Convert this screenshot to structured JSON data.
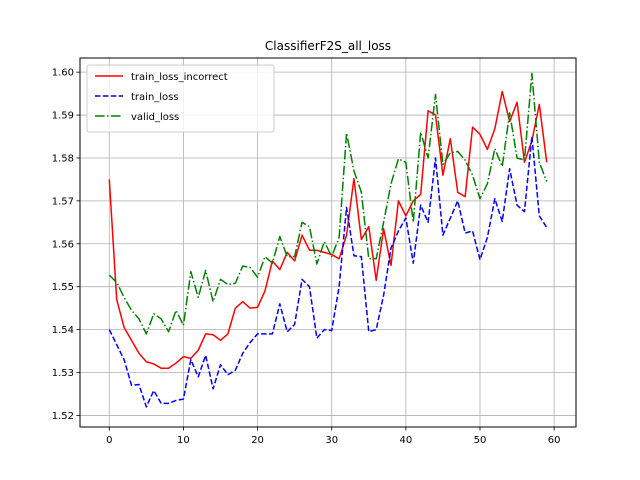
{
  "chart_data": {
    "type": "line",
    "title": "ClassifierF2S_all_loss",
    "xlabel": "",
    "ylabel": "",
    "xlim": [
      -3.95,
      62.95
    ],
    "ylim": [
      1.5173,
      1.6033
    ],
    "xticks": [
      0,
      10,
      20,
      30,
      40,
      50,
      60
    ],
    "yticks": [
      1.52,
      1.53,
      1.54,
      1.55,
      1.56,
      1.57,
      1.58,
      1.59,
      1.6
    ],
    "ytick_labels": [
      "1.52",
      "1.53",
      "1.54",
      "1.55",
      "1.56",
      "1.57",
      "1.58",
      "1.59",
      "1.60"
    ],
    "grid": true,
    "legend_position": "upper-left",
    "x": [
      0,
      1,
      2,
      3,
      4,
      5,
      6,
      7,
      8,
      9,
      10,
      11,
      12,
      13,
      14,
      15,
      16,
      17,
      18,
      19,
      20,
      21,
      22,
      23,
      24,
      25,
      26,
      27,
      28,
      29,
      30,
      31,
      32,
      33,
      34,
      35,
      36,
      37,
      38,
      39,
      40,
      41,
      42,
      43,
      44,
      45,
      46,
      47,
      48,
      49,
      50,
      51,
      52,
      53,
      54,
      55,
      56,
      57,
      58,
      59
    ],
    "series": [
      {
        "name": "train_loss_incorrect",
        "color": "#ff0000",
        "dash": "solid",
        "values": [
          1.575,
          1.547,
          1.5405,
          1.5375,
          1.5345,
          1.5325,
          1.532,
          1.531,
          1.531,
          1.5322,
          1.5337,
          1.5333,
          1.5352,
          1.539,
          1.5388,
          1.5375,
          1.539,
          1.545,
          1.5465,
          1.545,
          1.5452,
          1.549,
          1.556,
          1.554,
          1.558,
          1.556,
          1.562,
          1.5585,
          1.5585,
          1.558,
          1.5575,
          1.5565,
          1.562,
          1.5752,
          1.561,
          1.564,
          1.5515,
          1.5635,
          1.555,
          1.57,
          1.5665,
          1.57,
          1.5715,
          1.591,
          1.59,
          1.576,
          1.5845,
          1.572,
          1.571,
          1.5872,
          1.5855,
          1.582,
          1.5868,
          1.5955,
          1.5885,
          1.593,
          1.579,
          1.584,
          1.5925,
          1.579
        ]
      },
      {
        "name": "train_loss",
        "color": "#0000ff",
        "dash": "dashed",
        "values": [
          1.54,
          1.5365,
          1.533,
          1.527,
          1.5272,
          1.522,
          1.5258,
          1.5228,
          1.5228,
          1.5235,
          1.5238,
          1.533,
          1.529,
          1.534,
          1.5262,
          1.5318,
          1.5295,
          1.5305,
          1.5345,
          1.537,
          1.539,
          1.539,
          1.539,
          1.546,
          1.5395,
          1.5412,
          1.5517,
          1.55,
          1.538,
          1.54,
          1.5398,
          1.55,
          1.5685,
          1.5572,
          1.557,
          1.5395,
          1.54,
          1.548,
          1.559,
          1.563,
          1.566,
          1.5555,
          1.569,
          1.565,
          1.58,
          1.562,
          1.566,
          1.57,
          1.5625,
          1.563,
          1.5563,
          1.5615,
          1.5705,
          1.5652,
          1.5775,
          1.569,
          1.5675,
          1.585,
          1.5665,
          1.5638
        ]
      },
      {
        "name": "valid_loss",
        "color": "#008000",
        "dash": "dashdot",
        "values": [
          1.5527,
          1.551,
          1.5475,
          1.5445,
          1.5425,
          1.539,
          1.5437,
          1.5425,
          1.5395,
          1.5445,
          1.541,
          1.5535,
          1.5475,
          1.5538,
          1.5465,
          1.5517,
          1.5505,
          1.5508,
          1.5548,
          1.5545,
          1.5522,
          1.557,
          1.5555,
          1.5617,
          1.557,
          1.557,
          1.565,
          1.564,
          1.5553,
          1.5605,
          1.557,
          1.5615,
          1.5858,
          1.577,
          1.572,
          1.5565,
          1.5565,
          1.565,
          1.574,
          1.5798,
          1.579,
          1.565,
          1.586,
          1.58,
          1.5948,
          1.5785,
          1.5812,
          1.5815,
          1.5795,
          1.576,
          1.5705,
          1.574,
          1.5822,
          1.578,
          1.5905,
          1.58,
          1.5795,
          1.5997,
          1.579,
          1.5745
        ]
      }
    ]
  }
}
